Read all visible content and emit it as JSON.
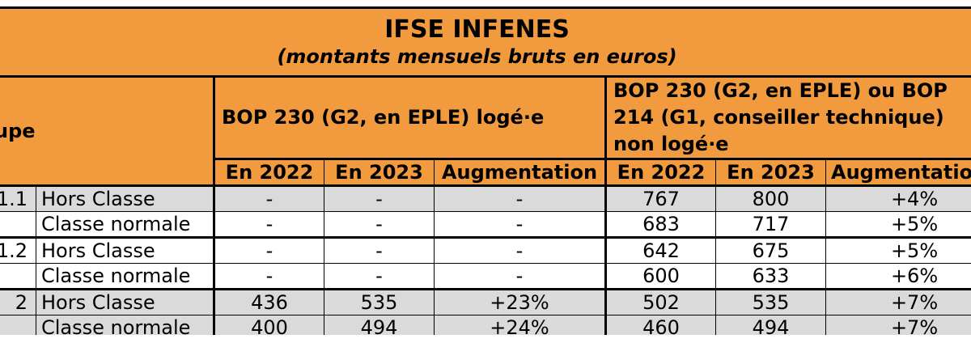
{
  "title": "IFSE INFENES",
  "subtitle": "(montants mensuels bruts en euros)",
  "header": {
    "group_label": "Groupe",
    "bop_loge": "BOP 230 (G2, en EPLE) logé·e",
    "bop_non_loge": "BOP 230 (G2, en EPLE) ou BOP 214 (G1, conseiller technique) non logé·e",
    "col_2022": "En 2022",
    "col_2023": "En 2023",
    "col_aug": "Augmentation"
  },
  "rows": [
    {
      "group": "1.1",
      "classe": "Hors Classe",
      "l2022": "-",
      "l2023": "-",
      "laug": "-",
      "n2022": "767",
      "n2023": "800",
      "naug": "+4%"
    },
    {
      "group": "",
      "classe": "Classe normale",
      "l2022": "-",
      "l2023": "-",
      "laug": "-",
      "n2022": "683",
      "n2023": "717",
      "naug": "+5%"
    },
    {
      "group": "1.2",
      "classe": "Hors Classe",
      "l2022": "-",
      "l2023": "-",
      "laug": "-",
      "n2022": "642",
      "n2023": "675",
      "naug": "+5%"
    },
    {
      "group": "",
      "classe": "Classe normale",
      "l2022": "-",
      "l2023": "-",
      "laug": "-",
      "n2022": "600",
      "n2023": "633",
      "naug": "+6%"
    },
    {
      "group": "2",
      "classe": "Hors Classe",
      "l2022": "436",
      "l2023": "535",
      "laug": "+23%",
      "n2022": "502",
      "n2023": "535",
      "naug": "+7%"
    },
    {
      "group": "",
      "classe": "Classe normale",
      "l2022": "400",
      "l2023": "494",
      "laug": "+24%",
      "n2022": "460",
      "n2023": "494",
      "naug": "+7%"
    }
  ],
  "colors": {
    "header": "#f19a3e",
    "shaded_row": "#dadada"
  }
}
